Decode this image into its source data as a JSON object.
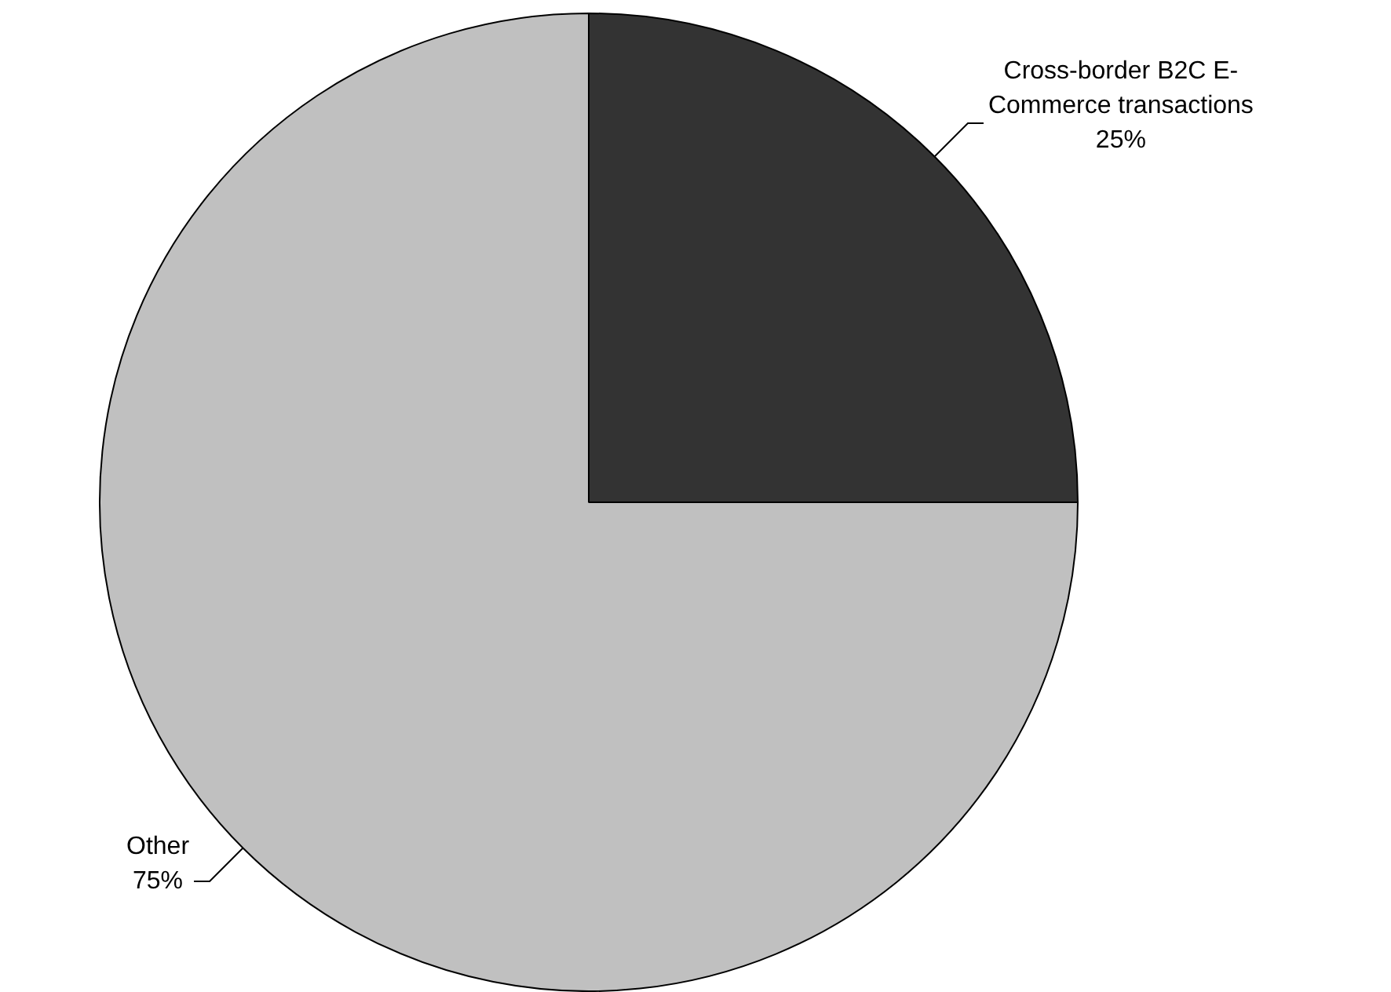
{
  "chart_data": {
    "type": "pie",
    "categories": [
      "Cross-border B2C E-Commerce transactions",
      "Other"
    ],
    "values": [
      25,
      75
    ],
    "colors": [
      "#333333",
      "#c0c0c0"
    ],
    "value_labels": [
      "25%",
      "75%"
    ],
    "legend": false
  }
}
